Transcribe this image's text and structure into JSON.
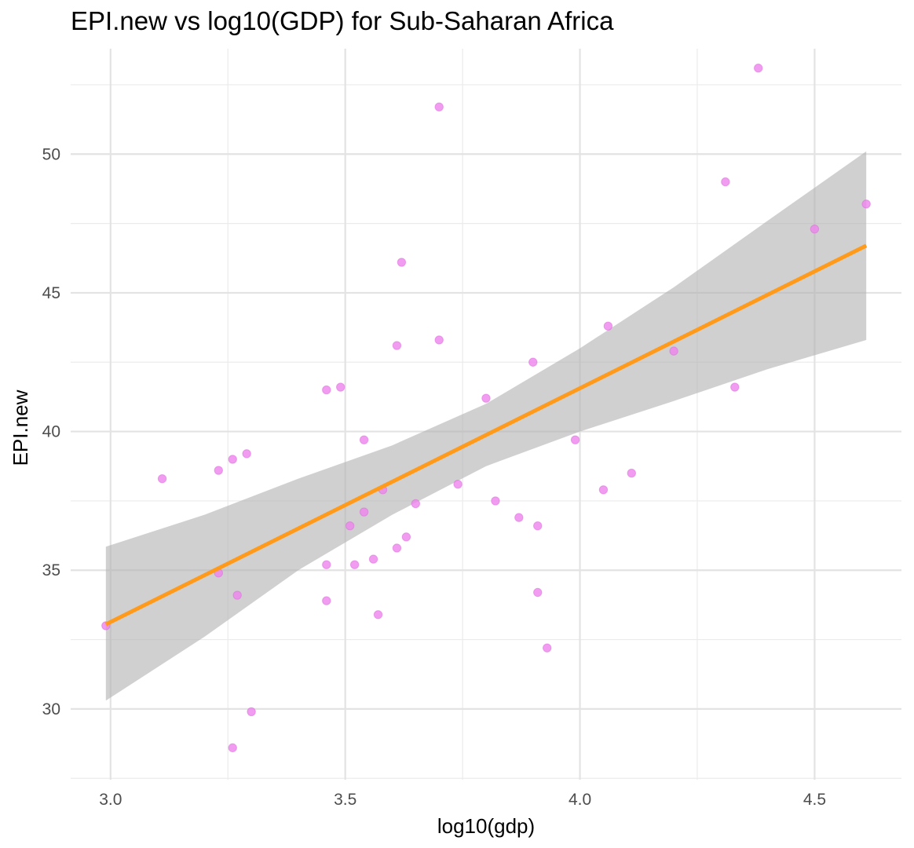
{
  "chart_data": {
    "type": "scatter",
    "title": "EPI.new vs log10(GDP) for Sub-Saharan Africa",
    "xlabel": "log10(gdp)",
    "ylabel": "EPI.new",
    "xlim": [
      2.915,
      4.685
    ],
    "ylim": [
      27.45,
      53.8
    ],
    "x_ticks": [
      3.0,
      3.5,
      4.0,
      4.5
    ],
    "x_tick_labels": [
      "3.0",
      "3.5",
      "4.0",
      "4.5"
    ],
    "y_ticks": [
      30,
      35,
      40,
      45,
      50
    ],
    "y_tick_labels": [
      "30",
      "35",
      "40",
      "45",
      "50"
    ],
    "grid": true,
    "point_color": "#ee82ee",
    "line_color": "#ff9a1a",
    "band_color": "#b3b3b3",
    "points": [
      {
        "x": 2.99,
        "y": 33.0
      },
      {
        "x": 3.11,
        "y": 38.3
      },
      {
        "x": 3.23,
        "y": 38.6
      },
      {
        "x": 3.23,
        "y": 34.9
      },
      {
        "x": 3.26,
        "y": 39.0
      },
      {
        "x": 3.26,
        "y": 28.6
      },
      {
        "x": 3.27,
        "y": 34.1
      },
      {
        "x": 3.29,
        "y": 39.2
      },
      {
        "x": 3.3,
        "y": 29.9
      },
      {
        "x": 3.46,
        "y": 41.5
      },
      {
        "x": 3.46,
        "y": 35.2
      },
      {
        "x": 3.46,
        "y": 33.9
      },
      {
        "x": 3.49,
        "y": 41.6
      },
      {
        "x": 3.51,
        "y": 36.6
      },
      {
        "x": 3.52,
        "y": 35.2
      },
      {
        "x": 3.54,
        "y": 39.7
      },
      {
        "x": 3.54,
        "y": 37.1
      },
      {
        "x": 3.56,
        "y": 35.4
      },
      {
        "x": 3.57,
        "y": 33.4
      },
      {
        "x": 3.58,
        "y": 37.9
      },
      {
        "x": 3.61,
        "y": 35.8
      },
      {
        "x": 3.61,
        "y": 43.1
      },
      {
        "x": 3.62,
        "y": 46.1
      },
      {
        "x": 3.63,
        "y": 36.2
      },
      {
        "x": 3.65,
        "y": 37.4
      },
      {
        "x": 3.7,
        "y": 43.3
      },
      {
        "x": 3.7,
        "y": 51.7
      },
      {
        "x": 3.74,
        "y": 38.1
      },
      {
        "x": 3.8,
        "y": 41.2
      },
      {
        "x": 3.82,
        "y": 37.5
      },
      {
        "x": 3.87,
        "y": 36.9
      },
      {
        "x": 3.9,
        "y": 42.5
      },
      {
        "x": 3.91,
        "y": 36.6
      },
      {
        "x": 3.91,
        "y": 34.2
      },
      {
        "x": 3.93,
        "y": 32.2
      },
      {
        "x": 3.99,
        "y": 39.7
      },
      {
        "x": 4.05,
        "y": 37.9
      },
      {
        "x": 4.06,
        "y": 43.8
      },
      {
        "x": 4.11,
        "y": 38.5
      },
      {
        "x": 4.2,
        "y": 42.9
      },
      {
        "x": 4.31,
        "y": 49.0
      },
      {
        "x": 4.33,
        "y": 41.6
      },
      {
        "x": 4.38,
        "y": 53.1
      },
      {
        "x": 4.5,
        "y": 47.3
      },
      {
        "x": 4.61,
        "y": 48.2
      }
    ],
    "fit_line": {
      "x": [
        2.99,
        4.61
      ],
      "y": [
        33.05,
        46.7
      ]
    },
    "confidence_band": {
      "x": [
        2.99,
        3.2,
        3.4,
        3.6,
        3.8,
        4.0,
        4.2,
        4.4,
        4.61
      ],
      "lower": [
        30.3,
        32.6,
        35.0,
        37.0,
        38.75,
        40.0,
        41.1,
        42.25,
        43.3
      ],
      "upper": [
        35.85,
        37.0,
        38.3,
        39.5,
        41.0,
        43.0,
        45.2,
        47.6,
        50.1
      ]
    }
  }
}
